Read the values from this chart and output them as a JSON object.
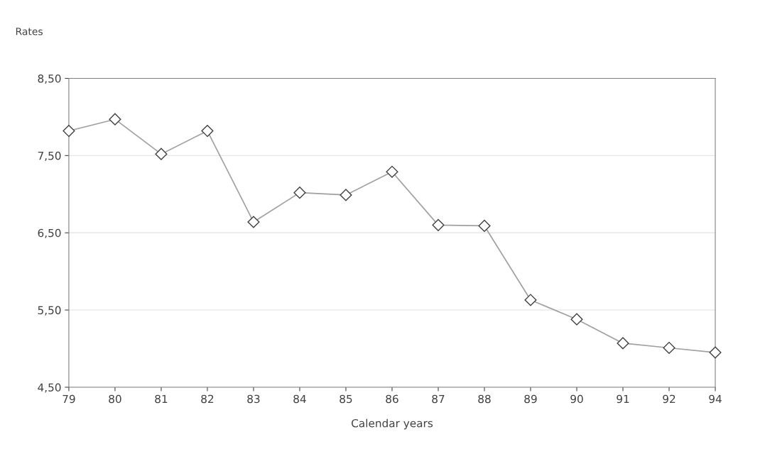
{
  "chart_data": {
    "type": "line",
    "ylabel": "Rates",
    "xlabel": "Calendar years",
    "categories": [
      "79",
      "80",
      "81",
      "82",
      "83",
      "84",
      "85",
      "86",
      "87",
      "88",
      "89",
      "90",
      "91",
      "92",
      "94"
    ],
    "series": [
      {
        "color": "#a0a0a0",
        "values": [
          7.82,
          7.97,
          7.52,
          7.82,
          6.64,
          7.02,
          6.99,
          7.29,
          6.6,
          6.59,
          5.63,
          5.38,
          5.07,
          5.01,
          4.95
        ]
      }
    ],
    "ylim": [
      4.5,
      8.5
    ],
    "yticks": [
      {
        "value": 4.5,
        "label": "4,50"
      },
      {
        "value": 5.5,
        "label": "5,50"
      },
      {
        "value": 6.5,
        "label": "6,50"
      },
      {
        "value": 7.5,
        "label": "7,50"
      },
      {
        "value": 8.5,
        "label": "8,50"
      }
    ],
    "grid": "y",
    "marker": "diamond",
    "line_style": "solid"
  }
}
